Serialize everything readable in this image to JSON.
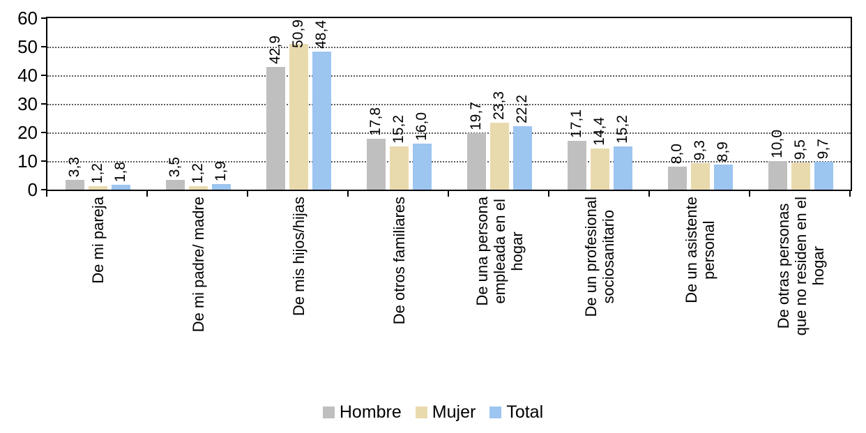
{
  "chart_data": {
    "type": "bar",
    "title": "",
    "xlabel": "",
    "ylabel": "",
    "ylim": [
      0,
      60
    ],
    "yticks": [
      0,
      10,
      20,
      30,
      40,
      50,
      60
    ],
    "grid": "horizontal-dotted",
    "legend_position": "bottom",
    "decimal_separator": ",",
    "categories": [
      "De mi pareja",
      "De mi padre/ madre",
      "De mis hijos/hijas",
      "De otros familiares",
      "De una persona\nempleada en el\nhogar",
      "De un profesional\nsociosanitario",
      "De un asistente\npersonal",
      "De otras personas\nque no residen en el\nhogar"
    ],
    "series": [
      {
        "name": "Hombre",
        "color": "#BFBFBF",
        "values": [
          3.3,
          3.5,
          42.9,
          17.8,
          19.7,
          17.1,
          8.0,
          10.0
        ]
      },
      {
        "name": "Mujer",
        "color": "#E9DAAE",
        "values": [
          1.2,
          1.2,
          50.9,
          15.2,
          23.3,
          14.4,
          9.3,
          9.5
        ]
      },
      {
        "name": "Total",
        "color": "#9CC5F0",
        "values": [
          1.8,
          1.9,
          48.4,
          16.0,
          22.2,
          15.2,
          8.9,
          9.7
        ]
      }
    ],
    "colors": {
      "grid": "#595959",
      "axis": "#000000",
      "text": "#000000"
    }
  }
}
